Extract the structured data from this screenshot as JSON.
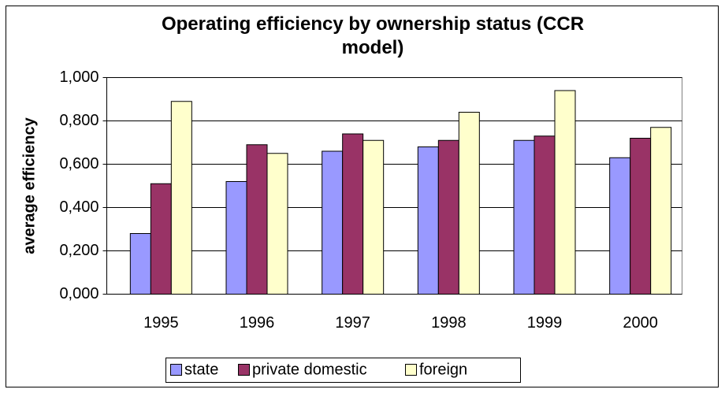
{
  "chart_data": {
    "type": "bar",
    "title": "Operating efficiency by ownership status (CCR model)",
    "y_label": "average efficiency",
    "categories": [
      "1995",
      "1996",
      "1997",
      "1998",
      "1999",
      "2000"
    ],
    "series": [
      {
        "name": "state",
        "color": "#9999ff",
        "values": [
          0.28,
          0.52,
          0.66,
          0.68,
          0.71,
          0.63
        ]
      },
      {
        "name": "private domestic",
        "color": "#993366",
        "values": [
          0.51,
          0.69,
          0.74,
          0.71,
          0.73,
          0.72
        ]
      },
      {
        "name": "foreign",
        "color": "#ffffcc",
        "values": [
          0.89,
          0.65,
          0.71,
          0.84,
          0.94,
          0.77
        ]
      }
    ],
    "ylim": [
      0,
      1
    ],
    "yticks": [
      {
        "value": 0,
        "label": "0,000"
      },
      {
        "value": 0.2,
        "label": "0,200"
      },
      {
        "value": 0.4,
        "label": "0,400"
      },
      {
        "value": 0.6,
        "label": "0,600"
      },
      {
        "value": 0.8,
        "label": "0,800"
      },
      {
        "value": 1,
        "label": "1,000"
      }
    ],
    "grid": true,
    "legend": "bottom"
  }
}
